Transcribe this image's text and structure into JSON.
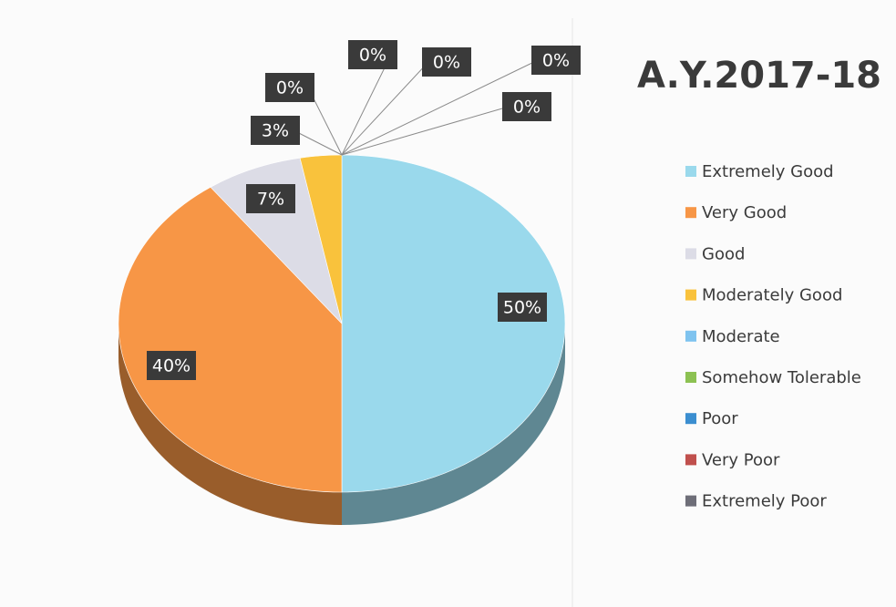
{
  "chart_data": {
    "type": "pie",
    "title": "A.Y.2017-18",
    "categories": [
      "Extremely Good",
      "Very Good",
      "Good",
      "Moderately Good",
      "Moderate",
      "Somehow Tolerable",
      "Poor",
      "Very Poor",
      "Extremely Poor"
    ],
    "values": [
      50,
      40,
      7,
      3,
      0,
      0,
      0,
      0,
      0
    ],
    "value_labels": [
      "50%",
      "40%",
      "7%",
      "3%",
      "0%",
      "0%",
      "0%",
      "0%",
      "0%"
    ],
    "colors": [
      "#9ad9ec",
      "#f79646",
      "#dcdce6",
      "#f9c23c",
      "#7ec3ef",
      "#8cc152",
      "#3b8ed0",
      "#c0504d",
      "#6e6e78"
    ],
    "legend": "right"
  }
}
